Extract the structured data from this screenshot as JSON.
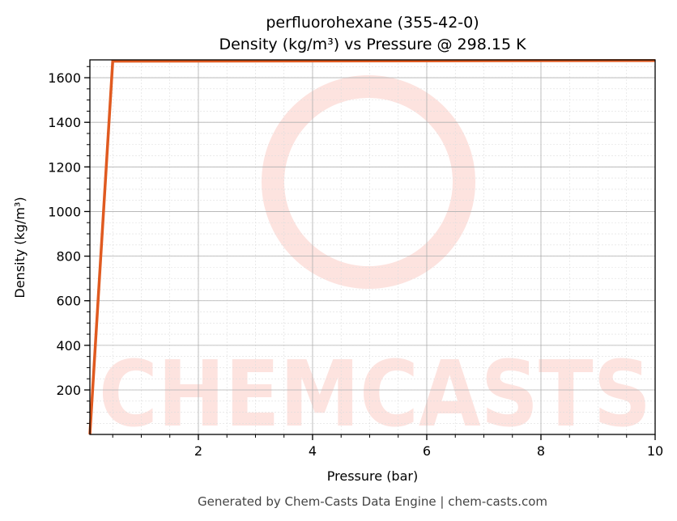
{
  "chart_data": {
    "type": "line",
    "title": "perfluorohexane (355-42-0)",
    "subtitle": "Density (kg/m³) vs Pressure @ 298.15 K",
    "xlabel": "Pressure (bar)",
    "ylabel": "Density (kg/m³)",
    "xlim": [
      0.1,
      10
    ],
    "ylim": [
      0.5,
      1680
    ],
    "xticks": [
      2,
      4,
      6,
      8,
      10
    ],
    "yticks": [
      200,
      400,
      600,
      800,
      1000,
      1200,
      1400,
      1600
    ],
    "x_minor_step": 0.5,
    "y_minor_step": 50,
    "grid": true,
    "series": [
      {
        "color": "#e05a20",
        "x": [
          0.1,
          0.5,
          10
        ],
        "y": [
          1,
          1674,
          1677
        ]
      }
    ]
  },
  "watermark": "CHEMCASTS",
  "footer": "Generated by Chem-Casts Data Engine | chem-casts.com",
  "colors": {
    "line": "#e05a20",
    "watermark": "#fde3df",
    "grid": "#b0b0b0"
  }
}
